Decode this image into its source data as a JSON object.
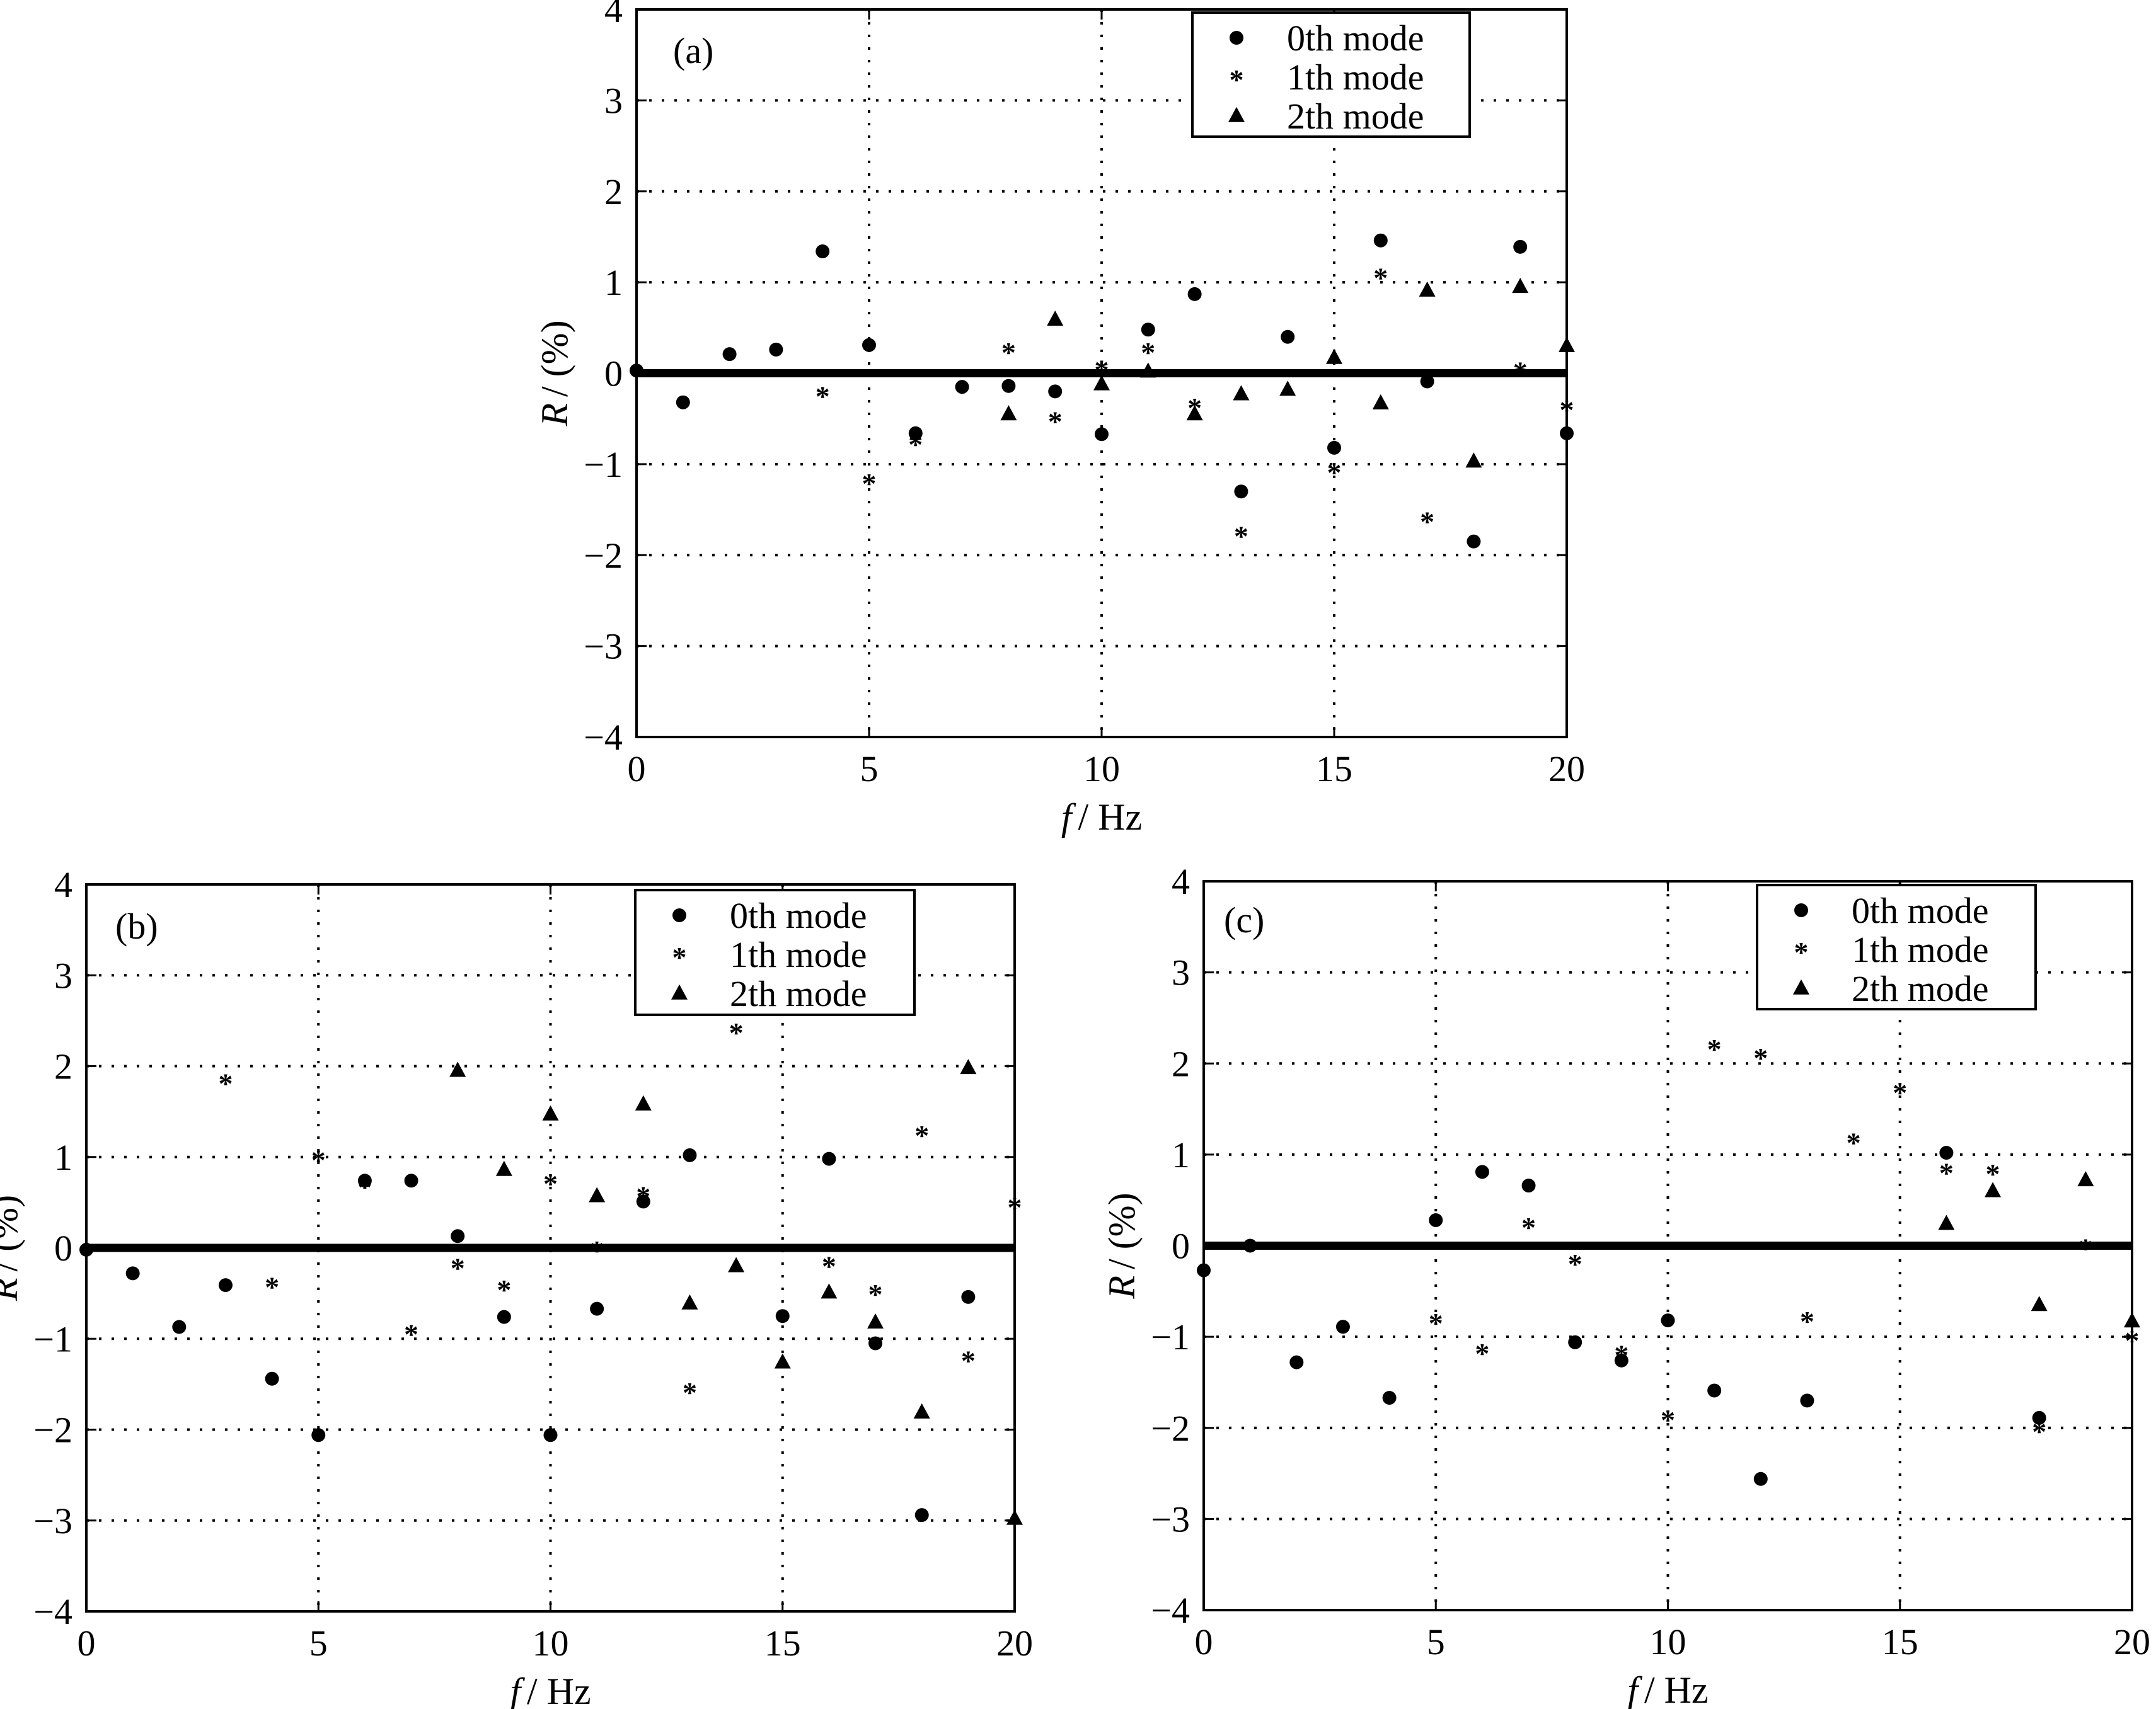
{
  "figure": {
    "panels": [
      "a",
      "b",
      "c"
    ]
  },
  "chart_data": [
    {
      "type": "scatter",
      "panel_label": "(a)",
      "xlabel_var": "f",
      "xlabel_unit": "/ Hz",
      "ylabel_var": "R",
      "ylabel_unit": "/ (%)",
      "xlim": [
        0,
        20
      ],
      "ylim": [
        -4,
        4
      ],
      "xticks": [
        0,
        5,
        10,
        15,
        20
      ],
      "yticks": [
        -4,
        -3,
        -2,
        -1,
        0,
        1,
        2,
        3,
        4
      ],
      "grid": true,
      "legend_position": "top-right",
      "reference_line": 0,
      "series": [
        {
          "name": "0th mode",
          "marker": "circle",
          "x": [
            0,
            1,
            2,
            3,
            4,
            5,
            6,
            7,
            8,
            9,
            10,
            11,
            12,
            13,
            14,
            15,
            16,
            17,
            18,
            19,
            20
          ],
          "y": [
            0.03,
            -0.32,
            0.21,
            0.26,
            1.34,
            0.31,
            -0.66,
            -0.15,
            -0.14,
            -0.2,
            -0.67,
            0.48,
            0.87,
            -1.3,
            0.4,
            -0.82,
            1.46,
            -0.09,
            -1.85,
            1.39,
            -0.66
          ]
        },
        {
          "name": "1th mode",
          "marker": "asterisk",
          "x": [
            4,
            5,
            6,
            8,
            9,
            10,
            11,
            12,
            13,
            15,
            16,
            17,
            19,
            20
          ],
          "y": [
            -0.22,
            -1.18,
            -0.75,
            0.26,
            -0.5,
            0.07,
            0.26,
            -0.35,
            -1.76,
            -1.06,
            1.08,
            -1.6,
            0.05,
            -0.37
          ]
        },
        {
          "name": "2th mode",
          "marker": "triangle",
          "x": [
            8,
            9,
            10,
            11,
            12,
            13,
            14,
            15,
            16,
            17,
            18,
            19,
            20
          ],
          "y": [
            -0.45,
            0.59,
            -0.12,
            0.02,
            -0.45,
            -0.23,
            -0.18,
            0.17,
            -0.33,
            0.91,
            -0.97,
            0.95,
            0.3
          ]
        }
      ]
    },
    {
      "type": "scatter",
      "panel_label": "(b)",
      "xlabel_var": "f",
      "xlabel_unit": "/ Hz",
      "ylabel_var": "R",
      "ylabel_unit": "/ (%)",
      "xlim": [
        0,
        20
      ],
      "ylim": [
        -4,
        4
      ],
      "xticks": [
        0,
        5,
        10,
        15,
        20
      ],
      "yticks": [
        -4,
        -3,
        -2,
        -1,
        0,
        1,
        2,
        3,
        4
      ],
      "grid": true,
      "legend_position": "top-right",
      "reference_line": 0,
      "series": [
        {
          "name": "0th mode",
          "marker": "circle",
          "x": [
            0,
            1,
            2,
            3,
            4,
            5,
            6,
            7,
            8,
            9,
            10,
            11,
            12,
            13,
            15,
            16,
            17,
            18,
            19
          ],
          "y": [
            -0.02,
            -0.28,
            -0.87,
            -0.41,
            -1.44,
            -2.06,
            0.74,
            0.74,
            0.13,
            -0.76,
            -2.06,
            -0.67,
            0.51,
            1.02,
            -0.75,
            0.98,
            -1.05,
            -2.94,
            -0.54
          ]
        },
        {
          "name": "1th mode",
          "marker": "asterisk",
          "x": [
            3,
            4,
            5,
            6,
            7,
            8,
            9,
            10,
            11,
            12,
            13,
            14,
            16,
            17,
            18,
            19,
            20
          ],
          "y": [
            1.84,
            -0.4,
            1.0,
            0.7,
            -0.92,
            -0.19,
            -0.43,
            0.74,
            0.0,
            0.6,
            -1.56,
            2.4,
            -0.17,
            -0.48,
            1.27,
            -1.21,
            0.48
          ]
        },
        {
          "name": "2th mode",
          "marker": "triangle",
          "x": [
            8,
            9,
            10,
            11,
            12,
            13,
            14,
            15,
            16,
            17,
            18,
            19,
            20
          ],
          "y": [
            1.95,
            0.86,
            1.47,
            0.57,
            1.58,
            -0.61,
            -0.2,
            -1.26,
            -0.49,
            -0.82,
            -1.81,
            1.98,
            -2.98
          ]
        }
      ]
    },
    {
      "type": "scatter",
      "panel_label": "(c)",
      "xlabel_var": "f",
      "xlabel_unit": "/ Hz",
      "ylabel_var": "R",
      "ylabel_unit": "/ (%)",
      "xlim": [
        0,
        20
      ],
      "ylim": [
        -4,
        4
      ],
      "xticks": [
        0,
        5,
        10,
        15,
        20
      ],
      "yticks": [
        -4,
        -3,
        -2,
        -1,
        0,
        1,
        2,
        3,
        4
      ],
      "grid": true,
      "legend_position": "top-right",
      "reference_line": 0,
      "series": [
        {
          "name": "0th mode",
          "marker": "circle",
          "x": [
            0,
            1,
            2,
            3,
            4,
            5,
            6,
            7,
            8,
            9,
            10,
            11,
            12,
            13,
            16,
            18
          ],
          "y": [
            -0.27,
            0.0,
            -1.28,
            -0.89,
            -1.67,
            0.28,
            0.81,
            0.66,
            -1.06,
            -1.26,
            -0.82,
            -1.59,
            -2.56,
            -1.7,
            1.02,
            -1.89
          ]
        },
        {
          "name": "1th mode",
          "marker": "asterisk",
          "x": [
            5,
            6,
            7,
            8,
            9,
            10,
            11,
            12,
            13,
            14,
            15,
            16,
            17,
            18,
            19,
            20
          ],
          "y": [
            -0.82,
            -1.15,
            0.23,
            -0.17,
            -1.17,
            -1.88,
            2.19,
            2.09,
            -0.8,
            1.16,
            1.71,
            0.83,
            0.82,
            -2.01,
            0.0,
            -1.01
          ]
        },
        {
          "name": "2th mode",
          "marker": "triangle",
          "x": [
            16,
            17,
            18,
            19,
            20
          ],
          "y": [
            0.24,
            0.6,
            -0.65,
            0.72,
            -0.83
          ]
        }
      ]
    }
  ]
}
